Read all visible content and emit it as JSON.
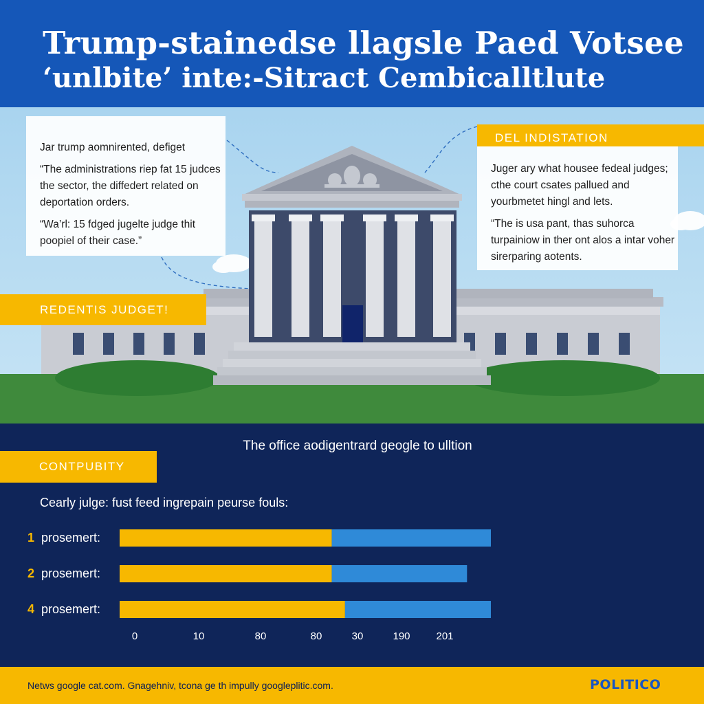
{
  "header": {
    "title_line1": "Trump-stainedse llagsle Paed Votsee",
    "title_line2": "‘unlbite’ inte:-Sitract Cembicalltlute"
  },
  "left_box": {
    "line1": "Jar trump aomnirented, defiget",
    "quote1": "“The administrations riep fat 15 judces the sector, the diffedert related on deportation orders.",
    "quote2": "“Wa’rl: 15 fdged jugelte judge thit poopiel of their case.”"
  },
  "right_box": {
    "header": "DEL INDISTATION",
    "para1": "Juger ary what housee fedeal judges; cthe court csates pallued and yourbmetet hingl and lets.",
    "para2": "“The is usa pant, thas suhorca turpainiow in ther ont alos a intar voher sirerparing aotents."
  },
  "banner_left": "REDENTIS JUDGET!",
  "section": {
    "subtitle": "The office aodigentrard geogle to ulltion",
    "tag": "CONTPUBITY",
    "intro": "Cearly julge: fust feed ingrepain peurse fouls:"
  },
  "chart_data": {
    "type": "bar",
    "orientation": "horizontal",
    "stacked": true,
    "categories": [
      {
        "num": "1",
        "label": "prosemert:"
      },
      {
        "num": "2",
        "label": "prosemert:"
      },
      {
        "num": "4",
        "label": "prosemert:"
      }
    ],
    "series": [
      {
        "values": [
          80,
          80,
          85
        ],
        "color": "#f7b800"
      },
      {
        "values": [
          60,
          51,
          55
        ],
        "color": "#2f8ad8"
      }
    ],
    "xticks": [
      "0",
      "10",
      "80",
      "80",
      "30",
      "190",
      "201"
    ],
    "xlim": [
      0,
      140
    ]
  },
  "footer": {
    "text": "Netws google cat.com. Gnagehniv, tcona ge th impully googleplitic.com.",
    "logo": "POLITICO"
  }
}
